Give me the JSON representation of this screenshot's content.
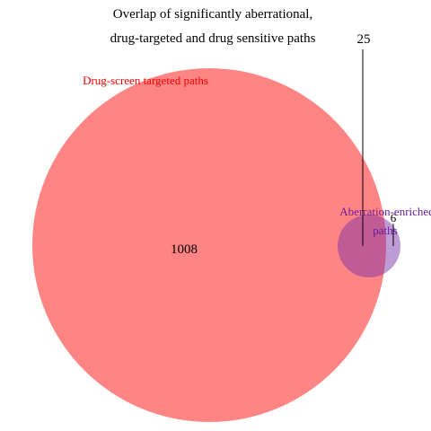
{
  "title": {
    "line1": "Overlap of significantly aberrational,",
    "line2": "drug-targeted and drug sensitive paths"
  },
  "sets": [
    {
      "label": "Drug-screen targeted paths",
      "color": "#ff0000",
      "label_color": "#ff0000"
    },
    {
      "label_line1": "Aberration-enriched",
      "label_line2": "paths",
      "color": "#7a2da8",
      "label_color": "#6a1b9a"
    }
  ],
  "regions": {
    "drug_only": "1008",
    "overlap": "25",
    "aberration_only": "6"
  }
}
